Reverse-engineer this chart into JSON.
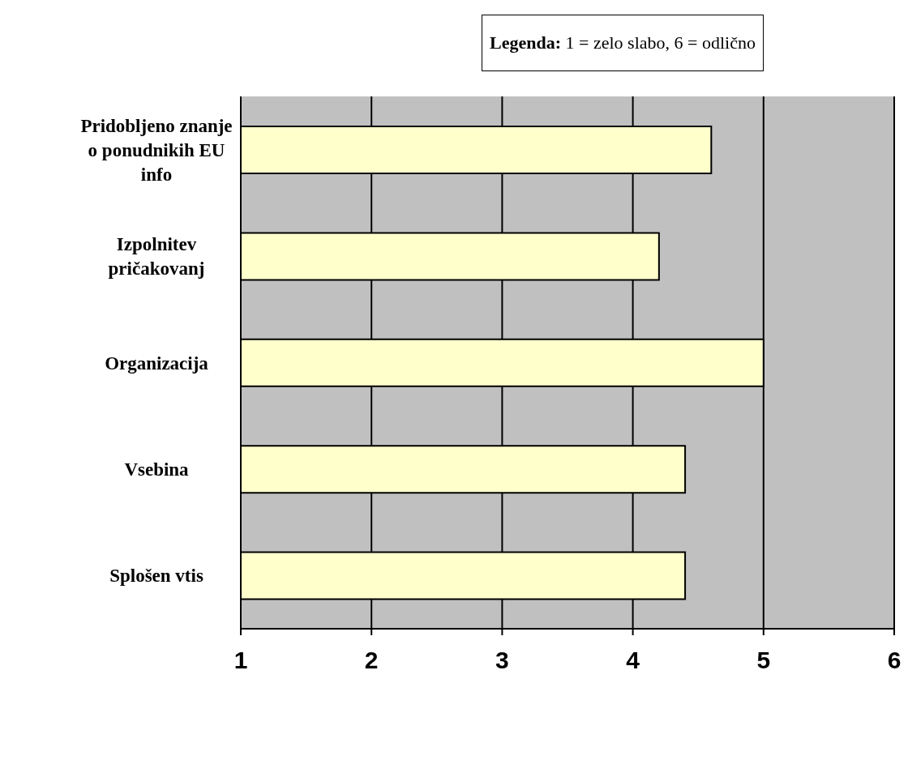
{
  "chart_data": {
    "type": "bar",
    "orientation": "horizontal",
    "categories": [
      "Pridobljeno znanje o ponudnikih EU info",
      "Izpolnitev pričakovanj",
      "Organizacija",
      "Vsebina",
      "Splošen vtis"
    ],
    "values": [
      4.6,
      4.2,
      5,
      4.4,
      4.4
    ],
    "color": "#ffffcc",
    "xlim": [
      1,
      6
    ],
    "xticks": [
      1,
      2,
      3,
      4,
      5,
      6
    ],
    "grid": "x",
    "annotations": [
      "Legenda: 1 = zelo slabo, 6 = odlično"
    ]
  }
}
